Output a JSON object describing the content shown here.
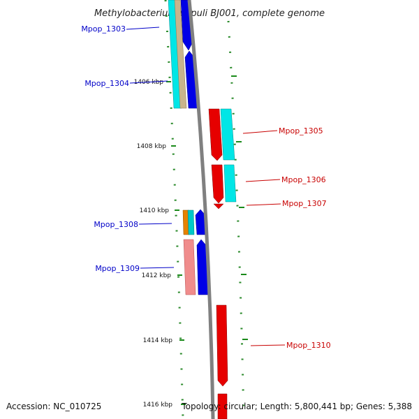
{
  "title": "Methylobacterium populi BJ001, complete genome",
  "ticks": [
    "1406 kbp",
    "1408 kbp",
    "1410 kbp",
    "1412 kbp",
    "1414 kbp",
    "1416 kbp"
  ],
  "genes_left": [
    "Mpop_1303",
    "Mpop_1304",
    "Mpop_1308",
    "Mpop_1309"
  ],
  "genes_right": [
    "Mpop_1305",
    "Mpop_1306",
    "Mpop_1307",
    "Mpop_1310"
  ],
  "footer": {
    "accession": "Accession: NC_010725",
    "topology": "Topology: circular; Length: 5,800,441 bp; Genes: 5,388"
  },
  "colors": {
    "backbone": "#808080",
    "forward_label": "#0000c8",
    "reverse_label": "#c80000",
    "tick": "#1a8a1a",
    "blue": "#0000e6",
    "red": "#e60000",
    "cyan": "#00e6e6",
    "tan": "#c8b48c",
    "orange": "#e68200",
    "pink": "#f08c8c"
  }
}
